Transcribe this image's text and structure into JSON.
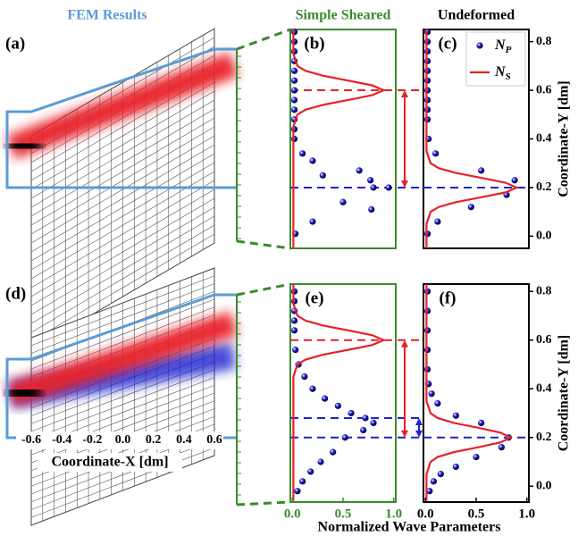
{
  "chart_data": [
    {
      "type": "field",
      "title": "FEM Results",
      "panels": [
        "(a)",
        "(d)"
      ],
      "xlabel": "Coordinate-X [dm]",
      "xlim": [
        -0.6,
        0.6
      ],
      "xticks": [
        -0.6,
        -0.4,
        -0.2,
        {
          "value": 0,
          "label": "0.0"
        },
        0.2,
        0.4,
        0.6
      ],
      "colors": {
        "outline": "#5b9bd5",
        "p": "#1e22d0",
        "s": "#e8202a"
      }
    },
    {
      "type": "profile",
      "panel": "(b)",
      "title": "Simple Sheared",
      "frame_color": "#3b8a2e",
      "xlim": [
        -0.02,
        1.02
      ],
      "ylim": [
        -0.05,
        0.85
      ],
      "series": [
        {
          "kind": "scatter",
          "color": "#1e22d0",
          "x": [
            0.02,
            0.02,
            0.02,
            0.02,
            0.02,
            0.02,
            0.02,
            0.02,
            0.02,
            0.02,
            0.02,
            0.02,
            0.1,
            0.2,
            0.66,
            0.3,
            0.77,
            0.95,
            0.8,
            0.5,
            0.78,
            0.2,
            0.03
          ],
          "values": [
            0.84,
            0.8,
            0.76,
            0.72,
            0.68,
            0.64,
            0.6,
            0.56,
            0.52,
            0.48,
            0.44,
            0.4,
            0.34,
            0.31,
            0.27,
            0.25,
            0.23,
            0.2,
            0.2,
            0.14,
            0.11,
            0.06,
            0.01
          ]
        },
        {
          "kind": "line",
          "color": "#e8202a",
          "x": [
            0.01,
            0.01,
            0.01,
            0.01,
            0.01,
            0.01,
            0.01,
            0.05,
            0.13,
            0.3,
            0.55,
            0.79,
            0.9,
            0.79,
            0.55,
            0.3,
            0.13,
            0.05,
            0.01,
            0.01,
            0.01
          ],
          "values": [
            -0.05,
            0.0,
            0.1,
            0.2,
            0.3,
            0.4,
            0.45,
            0.5,
            0.52,
            0.54,
            0.56,
            0.58,
            0.6,
            0.62,
            0.64,
            0.66,
            0.68,
            0.7,
            0.75,
            0.8,
            0.85
          ]
        }
      ],
      "hlines": [
        {
          "value": 0.6,
          "color": "#e8202a"
        },
        {
          "value": 0.2,
          "color": "#1e22d0"
        }
      ],
      "arrows": [
        {
          "from": 0.6,
          "to": 0.2,
          "color": "#e8202a"
        }
      ]
    },
    {
      "type": "profile",
      "panel": "(c)",
      "title": "Undeformed",
      "frame_color": "#000000",
      "xlim": [
        -0.02,
        1.02
      ],
      "ylim": [
        -0.05,
        0.85
      ],
      "yticks": [
        {
          "value": 0,
          "label": "0.0"
        },
        0.2,
        0.4,
        0.6,
        0.8
      ],
      "ylabel": "Coordinate-Y [dm]",
      "legend": "upper right",
      "series": [
        {
          "name": "N_P",
          "kind": "scatter",
          "color": "#1e22d0",
          "x": [
            0.02,
            0.02,
            0.02,
            0.02,
            0.02,
            0.02,
            0.02,
            0.02,
            0.02,
            0.02,
            0.03,
            0.1,
            0.55,
            0.88,
            0.8,
            0.45,
            0.12,
            0.02
          ],
          "values": [
            0.84,
            0.8,
            0.76,
            0.72,
            0.68,
            0.64,
            0.6,
            0.56,
            0.52,
            0.48,
            0.4,
            0.34,
            0.27,
            0.23,
            0.17,
            0.12,
            0.06,
            0.01
          ]
        },
        {
          "name": "N_S",
          "kind": "line",
          "color": "#e8202a",
          "x": [
            0.01,
            0.01,
            0.01,
            0.05,
            0.13,
            0.3,
            0.55,
            0.79,
            0.9,
            0.79,
            0.55,
            0.3,
            0.13,
            0.05,
            0.01,
            0.01,
            0.01,
            0.01,
            0.01,
            0.01
          ],
          "values": [
            -0.05,
            0.0,
            0.05,
            0.1,
            0.12,
            0.14,
            0.16,
            0.18,
            0.2,
            0.22,
            0.24,
            0.26,
            0.28,
            0.3,
            0.35,
            0.4,
            0.5,
            0.6,
            0.7,
            0.85
          ]
        }
      ],
      "hlines": [
        {
          "value": 0.2,
          "color": "#1e22d0"
        }
      ]
    },
    {
      "type": "profile",
      "panel": "(e)",
      "frame_color": "#3b8a2e",
      "xlim": [
        -0.02,
        1.02
      ],
      "xticks": [
        {
          "value": 0,
          "label": "0.0"
        },
        0.5,
        {
          "value": 1,
          "label": "1.0"
        }
      ],
      "ylim": [
        -0.065,
        0.83
      ],
      "series": [
        {
          "kind": "scatter",
          "color": "#1e22d0",
          "x": [
            0.02,
            0.02,
            0.02,
            0.02,
            0.02,
            0.03,
            0.06,
            0.12,
            0.2,
            0.32,
            0.45,
            0.58,
            0.72,
            0.8,
            0.7,
            0.52,
            0.4,
            0.28,
            0.18,
            0.1,
            0.05
          ],
          "values": [
            0.8,
            0.76,
            0.72,
            0.68,
            0.64,
            0.56,
            0.5,
            0.45,
            0.4,
            0.36,
            0.33,
            0.3,
            0.28,
            0.26,
            0.23,
            0.2,
            0.14,
            0.1,
            0.06,
            0.02,
            -0.02
          ]
        },
        {
          "kind": "line",
          "color": "#e8202a",
          "x": [
            0.01,
            0.01,
            0.01,
            0.01,
            0.01,
            0.01,
            0.01,
            0.05,
            0.13,
            0.3,
            0.55,
            0.79,
            0.9,
            0.79,
            0.55,
            0.3,
            0.13,
            0.05,
            0.01,
            0.01,
            0.01
          ],
          "values": [
            -0.06,
            0.0,
            0.1,
            0.2,
            0.3,
            0.4,
            0.45,
            0.5,
            0.52,
            0.54,
            0.56,
            0.58,
            0.6,
            0.62,
            0.64,
            0.66,
            0.68,
            0.7,
            0.75,
            0.8,
            0.83
          ]
        }
      ],
      "hlines": [
        {
          "value": 0.6,
          "color": "#e8202a"
        },
        {
          "value": 0.28,
          "color": "#1e22d0"
        },
        {
          "value": 0.2,
          "color": "#1e22d0"
        }
      ],
      "arrows": [
        {
          "from": 0.6,
          "to": 0.2,
          "color": "#e8202a"
        },
        {
          "from": 0.28,
          "to": 0.2,
          "color": "#1e22d0"
        }
      ]
    },
    {
      "type": "profile",
      "panel": "(f)",
      "frame_color": "#000000",
      "xlim": [
        -0.02,
        1.02
      ],
      "xticks": [
        {
          "value": 0,
          "label": "0.0"
        },
        0.5,
        {
          "value": 1,
          "label": "1.0"
        }
      ],
      "ylim": [
        -0.065,
        0.83
      ],
      "yticks": [
        {
          "value": 0,
          "label": "0.0"
        },
        0.2,
        0.4,
        0.6,
        0.8
      ],
      "ylabel": "Coordinate-Y [dm]",
      "xlabel": "Normalized Wave Parameters",
      "series": [
        {
          "kind": "scatter",
          "color": "#1e22d0",
          "x": [
            0.02,
            0.02,
            0.02,
            0.02,
            0.02,
            0.03,
            0.06,
            0.12,
            0.3,
            0.55,
            0.82,
            0.75,
            0.5,
            0.3,
            0.15,
            0.08,
            0.04
          ],
          "values": [
            0.8,
            0.72,
            0.64,
            0.56,
            0.48,
            0.42,
            0.38,
            0.34,
            0.29,
            0.26,
            0.2,
            0.16,
            0.12,
            0.08,
            0.05,
            0.02,
            -0.02
          ]
        },
        {
          "kind": "line",
          "color": "#e8202a",
          "x": [
            0.01,
            0.01,
            0.01,
            0.05,
            0.12,
            0.28,
            0.52,
            0.74,
            0.84,
            0.74,
            0.52,
            0.28,
            0.12,
            0.05,
            0.01,
            0.01,
            0.01,
            0.01,
            0.01,
            0.01
          ],
          "values": [
            -0.06,
            0.0,
            0.05,
            0.1,
            0.12,
            0.14,
            0.16,
            0.18,
            0.2,
            0.22,
            0.24,
            0.26,
            0.28,
            0.3,
            0.35,
            0.4,
            0.5,
            0.6,
            0.7,
            0.83
          ]
        }
      ],
      "hlines": [
        {
          "value": 0.2,
          "color": "#1e22d0"
        }
      ]
    }
  ]
}
